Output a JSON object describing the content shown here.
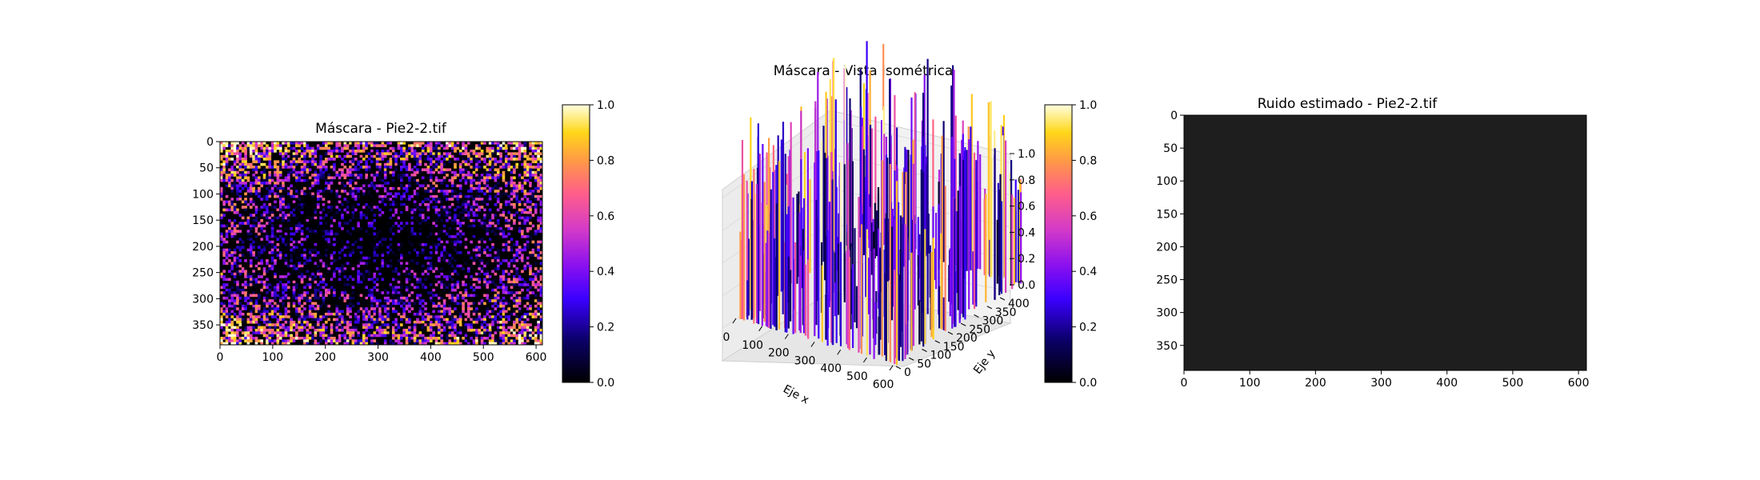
{
  "chart_data": [
    {
      "type": "heatmap",
      "title": "Máscara - Pie2-2.tif",
      "xlabel": "",
      "ylabel": "",
      "xlim": [
        0,
        612
      ],
      "ylim": [
        388,
        0
      ],
      "xticks": [
        0,
        100,
        200,
        300,
        400,
        500,
        600
      ],
      "yticks": [
        0,
        50,
        100,
        150,
        200,
        250,
        300,
        350
      ],
      "colormap": "gnuplot2",
      "value_range": [
        0,
        1
      ],
      "pattern": "sparse noise, denser and brighter toward the image borders and corners, dark center",
      "colorbar": {
        "min": 0,
        "max": 1,
        "ticks": [
          "0.0",
          "0.2",
          "0.4",
          "0.6",
          "0.8",
          "1.0"
        ]
      }
    },
    {
      "type": "surface3d",
      "title": "Máscara - Vista isométrica",
      "xlabel": "Eje x",
      "ylabel": "Eje y",
      "zlabel": "",
      "xticks": [
        0,
        100,
        200,
        300,
        400,
        500,
        600
      ],
      "yticks": [
        0,
        50,
        100,
        150,
        200,
        250,
        300,
        350,
        400
      ],
      "zticks": [
        "0.0",
        "0.2",
        "0.4",
        "0.6",
        "0.8",
        "1.0"
      ],
      "zlim": [
        0,
        1
      ],
      "colormap": "gnuplot2",
      "colorbar": {
        "min": 0,
        "max": 1,
        "ticks": [
          "0.0",
          "0.2",
          "0.4",
          "0.6",
          "0.8",
          "1.0"
        ]
      }
    },
    {
      "type": "heatmap",
      "title": "Ruido estimado - Pie2-2.tif",
      "xlabel": "",
      "ylabel": "",
      "xlim": [
        0,
        612
      ],
      "ylim": [
        388,
        0
      ],
      "xticks": [
        0,
        100,
        200,
        300,
        400,
        500,
        600
      ],
      "yticks": [
        0,
        50,
        100,
        150,
        200,
        250,
        300,
        350
      ],
      "fill_color": "#1e1e1e",
      "pattern": "uniform near-zero noise"
    }
  ],
  "colors": {
    "background": "#ffffff",
    "noise_panel": "#1e1e1e",
    "pane_gray": "#f0f0f0"
  }
}
